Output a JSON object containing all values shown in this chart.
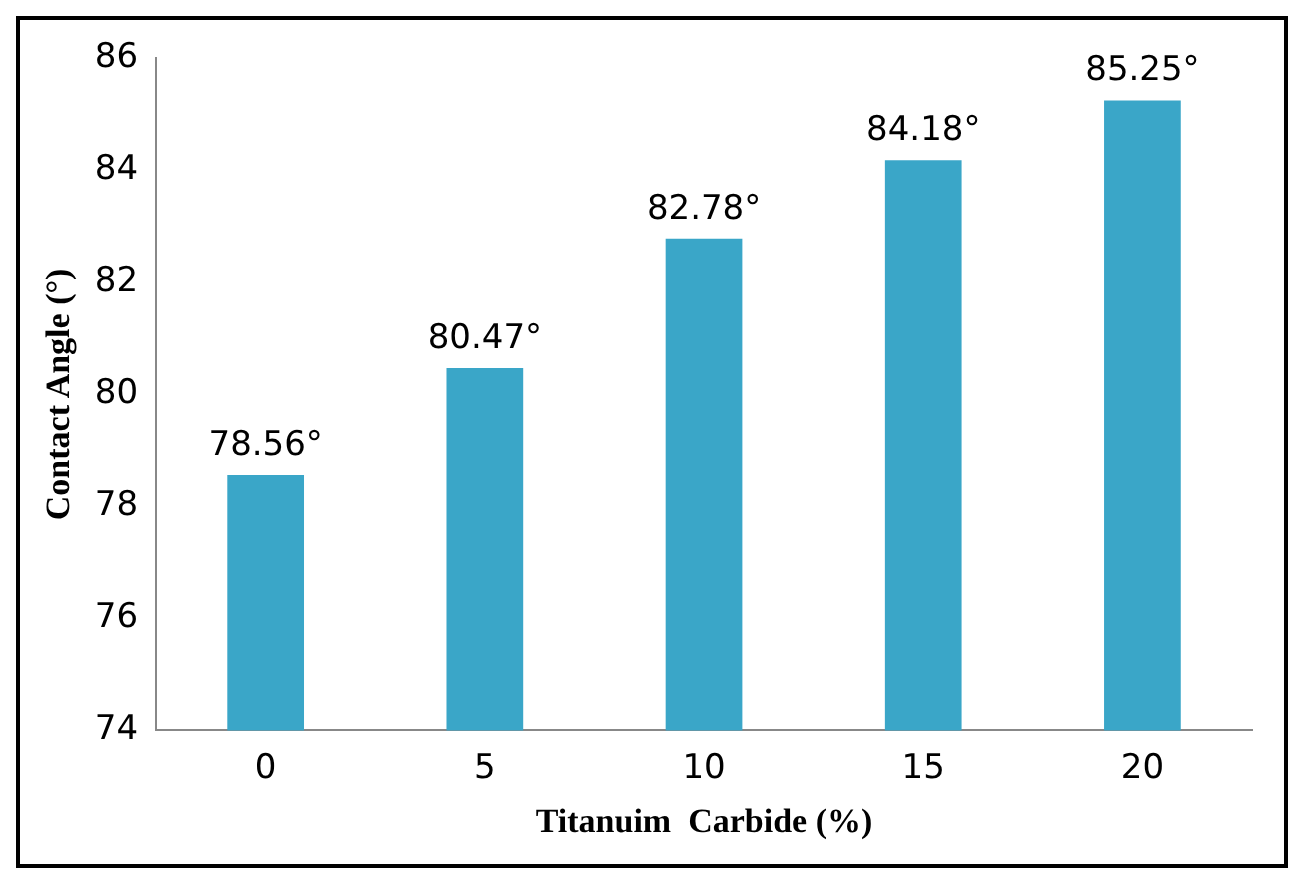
{
  "chart_data": {
    "type": "bar",
    "xlabel": "Titanuim  Carbide (%)",
    "ylabel": "Contact Angle (°)",
    "categories": [
      "0",
      "5",
      "10",
      "15",
      "20"
    ],
    "values": [
      78.56,
      80.47,
      82.78,
      84.18,
      85.25
    ],
    "value_labels": [
      "78.56°",
      "80.47°",
      "82.78°",
      "84.18°",
      "85.25°"
    ],
    "color": "#3aa6c8",
    "ylim": [
      74,
      86
    ],
    "yticks": [
      74,
      76,
      78,
      80,
      82,
      84,
      86
    ],
    "grid": false,
    "legend": false
  }
}
